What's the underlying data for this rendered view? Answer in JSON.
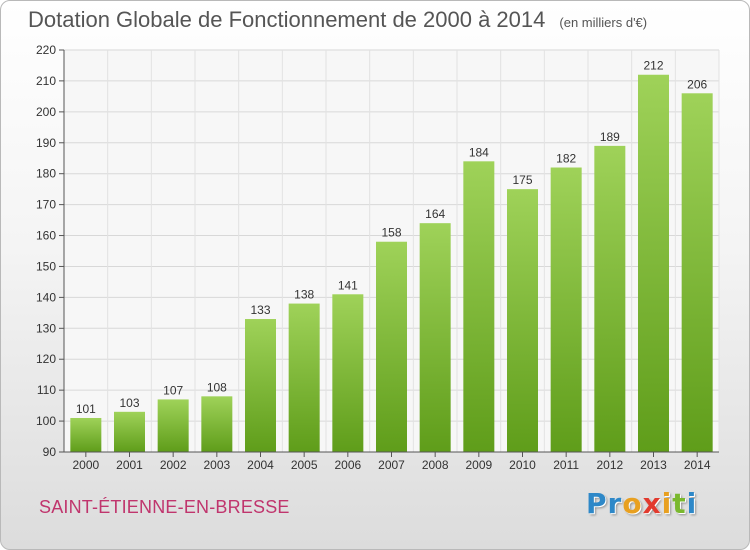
{
  "header": {
    "title": "Dotation Globale de Fonctionnement de 2000 à 2014",
    "unit": "(en milliers d'€)"
  },
  "footer": {
    "commune": "SAINT-ÉTIENNE-EN-BRESSE",
    "brand": [
      "P",
      "r",
      "o",
      "x",
      "i",
      "t",
      "i"
    ]
  },
  "colors": {
    "bar_light": "#9fd259",
    "bar_dark": "#5f9d1a",
    "commune": "#c0356d",
    "brand": [
      "#2e88c8",
      "#2e88c8",
      "#e8a020",
      "#e23a2e",
      "#e8a020",
      "#7ab82e",
      "#2e88c8"
    ]
  },
  "chart_data": {
    "type": "bar",
    "title": "Dotation Globale de Fonctionnement de 2000 à 2014",
    "subtitle": "(en milliers d'€)",
    "categories": [
      "2000",
      "2001",
      "2002",
      "2003",
      "2004",
      "2005",
      "2006",
      "2007",
      "2008",
      "2009",
      "2010",
      "2011",
      "2012",
      "2013",
      "2014"
    ],
    "values": [
      101,
      103,
      107,
      108,
      133,
      138,
      141,
      158,
      164,
      184,
      175,
      182,
      189,
      212,
      206
    ],
    "ylim": [
      90,
      220
    ],
    "yticks": [
      90,
      100,
      110,
      120,
      130,
      140,
      150,
      160,
      170,
      180,
      190,
      200,
      210,
      220
    ],
    "grid": true,
    "data_labels": true
  }
}
